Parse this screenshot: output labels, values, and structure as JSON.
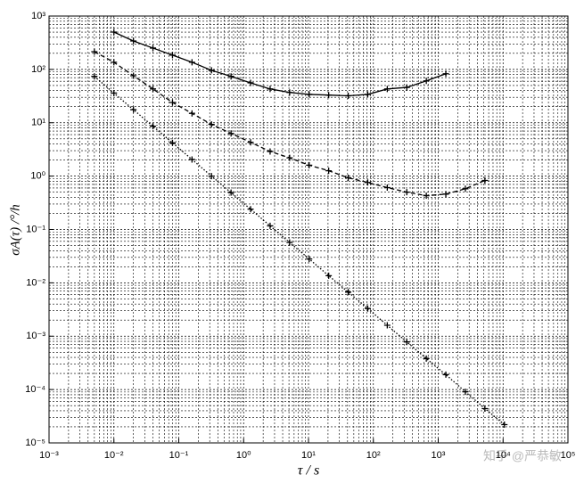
{
  "chart_data": {
    "type": "line",
    "xlabel": "τ / s",
    "ylabel": "σA(τ) /°/h",
    "watermark": "知乎 @严恭敏",
    "xscale": "log",
    "yscale": "log",
    "grid": true,
    "minor_grid": true,
    "xlim": [
      0.001,
      100000
    ],
    "ylim": [
      1e-05,
      1000
    ],
    "xticks": [
      {
        "value": 0.001,
        "label": "10⁻³"
      },
      {
        "value": 0.01,
        "label": "10⁻²"
      },
      {
        "value": 0.1,
        "label": "10⁻¹"
      },
      {
        "value": 1,
        "label": "10⁰"
      },
      {
        "value": 10,
        "label": "10¹"
      },
      {
        "value": 100,
        "label": "10²"
      },
      {
        "value": 1000,
        "label": "10³"
      },
      {
        "value": 10000,
        "label": "10⁴"
      },
      {
        "value": 100000,
        "label": "10⁵"
      }
    ],
    "yticks": [
      {
        "value": 1e-05,
        "label": "10⁻⁵"
      },
      {
        "value": 0.0001,
        "label": "10⁻⁴"
      },
      {
        "value": 0.001,
        "label": "10⁻³"
      },
      {
        "value": 0.01,
        "label": "10⁻²"
      },
      {
        "value": 0.1,
        "label": "10⁻¹"
      },
      {
        "value": 1,
        "label": "10⁰"
      },
      {
        "value": 10,
        "label": "10¹"
      },
      {
        "value": 100,
        "label": "10²"
      },
      {
        "value": 1000,
        "label": "10³"
      }
    ],
    "series": [
      {
        "color": "#000000",
        "linestyle": "solid",
        "x": [
          0.01,
          0.02,
          0.04,
          0.08,
          0.16,
          0.32,
          0.64,
          1.28,
          2.56,
          5.12,
          10.24,
          20.48,
          40.96,
          81.92,
          163.84,
          327.68,
          655.36,
          1310.72
        ],
        "values": [
          501,
          341,
          251,
          185,
          136,
          96,
          74,
          56,
          43,
          37,
          34,
          33,
          32,
          34,
          43,
          46,
          61,
          83
        ]
      },
      {
        "color": "#000000",
        "linestyle": "dashed",
        "x": [
          0.005,
          0.01,
          0.02,
          0.04,
          0.08,
          0.16,
          0.32,
          0.64,
          1.28,
          2.56,
          5.12,
          10.24,
          20.48,
          40.96,
          81.92,
          163.84,
          327.68,
          655.36,
          1310.72,
          2621.44,
          5242.88
        ],
        "values": [
          215,
          136,
          76,
          43,
          24,
          15,
          9.3,
          6.3,
          4.3,
          2.9,
          2.2,
          1.6,
          1.26,
          0.93,
          0.76,
          0.61,
          0.5,
          0.43,
          0.46,
          0.58,
          0.83
        ]
      },
      {
        "color": "#000000",
        "linestyle": "dotted",
        "x": [
          0.005,
          0.01,
          0.02,
          0.04,
          0.08,
          0.16,
          0.32,
          0.64,
          1.28,
          2.56,
          5.12,
          10.24,
          20.48,
          40.96,
          81.92,
          163.84,
          327.68,
          655.36,
          1310.72,
          2621.44,
          5242.88,
          10485.76
        ],
        "values": [
          74,
          36,
          17.6,
          8.6,
          4.2,
          2.05,
          1.0,
          0.49,
          0.24,
          0.117,
          0.057,
          0.028,
          0.0136,
          0.0067,
          0.0033,
          0.0016,
          0.00078,
          0.00038,
          0.00019,
          9.1e-05,
          4.4e-05,
          2.2e-05
        ]
      }
    ]
  }
}
